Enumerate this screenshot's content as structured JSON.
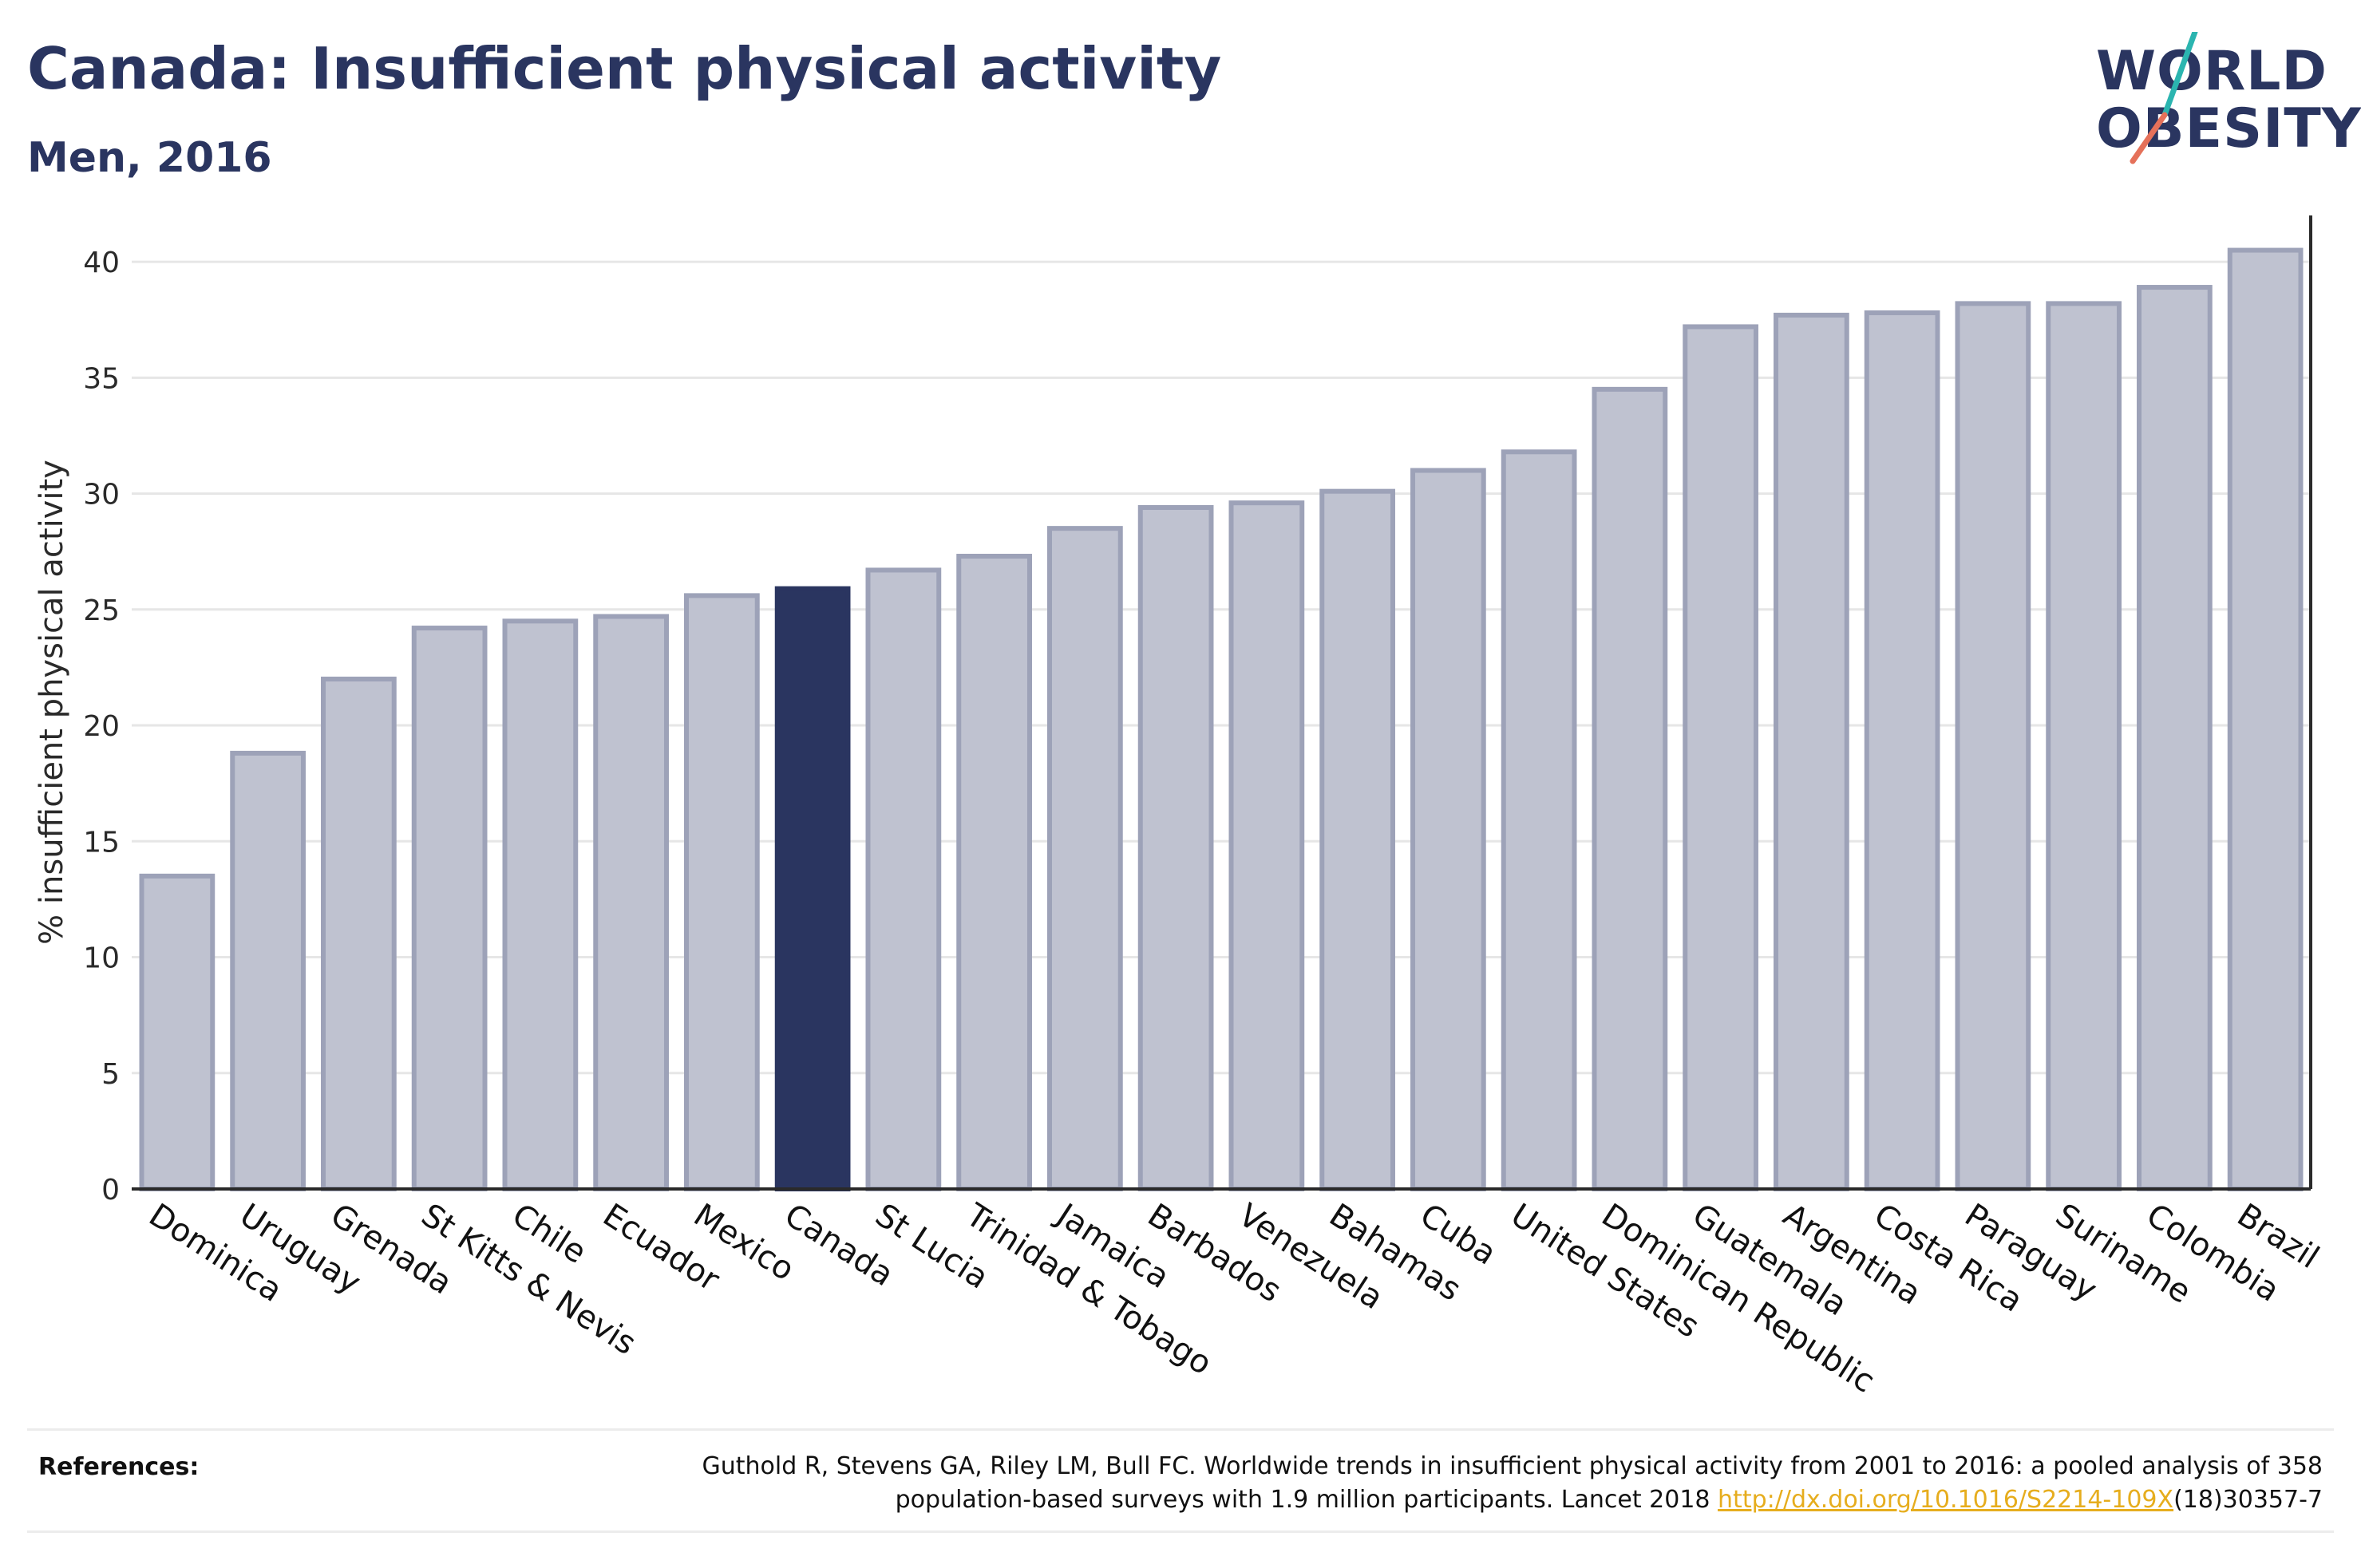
{
  "header": {
    "title": "Canada: Insufficient physical activity",
    "subtitle": "Men, 2016"
  },
  "logo": {
    "line1": "WORLD",
    "line2": "OBESITY",
    "slash_colors": [
      "#2bb5b0",
      "#e5715a"
    ]
  },
  "references": {
    "label": "References:",
    "line1": "Guthold R, Stevens GA, Riley LM, Bull FC. Worldwide trends in insufficient physical activity from 2001 to 2016: a pooled analysis of 358",
    "line2_prefix": "population-based surveys with 1.9 million participants. Lancet 2018 ",
    "link": "http://dx.doi.org/10.1016/S2214-109X",
    "line2_suffix": "(18)30357-7"
  },
  "colors": {
    "bar": "#bfc2d0",
    "bar_stroke": "#9da2b8",
    "highlight": "#2a3560",
    "grid": "#e6e6e6",
    "axis": "#2a2a2a"
  },
  "chart_data": {
    "type": "bar",
    "ylabel": "% insufficient physical activity",
    "ylim": [
      0,
      42
    ],
    "yticks": [
      0,
      5,
      10,
      15,
      20,
      25,
      30,
      35,
      40
    ],
    "grid": true,
    "highlight": "Canada",
    "categories": [
      "Dominica",
      "Uruguay",
      "Grenada",
      "St Kitts & Nevis",
      "Chile",
      "Ecuador",
      "Mexico",
      "Canada",
      "St Lucia",
      "Trinidad & Tobago",
      "Jamaica",
      "Barbados",
      "Venezuela",
      "Bahamas",
      "Cuba",
      "United States",
      "Dominican Republic",
      "Guatemala",
      "Argentina",
      "Costa Rica",
      "Paraguay",
      "Suriname",
      "Colombia",
      "Brazil"
    ],
    "values": [
      13.5,
      18.8,
      22.0,
      24.2,
      24.5,
      24.7,
      25.6,
      25.9,
      26.7,
      27.3,
      28.5,
      29.4,
      29.6,
      30.1,
      31.0,
      31.8,
      34.5,
      37.2,
      37.7,
      37.8,
      38.2,
      38.2,
      38.9,
      40.5
    ]
  }
}
